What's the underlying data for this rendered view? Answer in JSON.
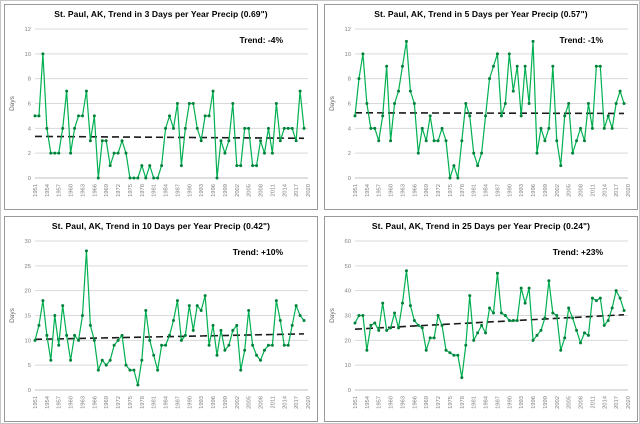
{
  "colors": {
    "line": "#00b050",
    "marker": "#00813b",
    "trend_line": "#1a1a1a",
    "grid": "#d9d9d9",
    "axis": "#bfbfbf",
    "tick_text": "#808080",
    "title_text": "#000000",
    "panel_border": "#999999",
    "frame_border": "#c6c6c6",
    "background": "#ffffff"
  },
  "chart_data": [
    {
      "type": "line",
      "title": "St. Paul, AK, Trend in 3 Days per Year Precip (0.69\")",
      "trend_label": "Trend: -4%",
      "ylabel": "Days",
      "x_start": 1951,
      "x_axis_end": 2020,
      "xticks": [
        1951,
        1954,
        1957,
        1960,
        1963,
        1966,
        1969,
        1972,
        1975,
        1978,
        1981,
        1984,
        1987,
        1990,
        1993,
        1996,
        1999,
        2002,
        2005,
        2008,
        2011,
        2014,
        2017,
        2020
      ],
      "ylim": [
        0,
        12
      ],
      "ytick_step": 2,
      "grid": true,
      "legend": "none",
      "trend_line": [
        3.35,
        3.2
      ],
      "values": [
        5,
        5,
        10,
        4,
        2,
        2,
        2,
        4,
        7,
        2,
        4,
        5,
        5,
        7,
        3,
        5,
        0,
        3,
        3,
        1,
        2,
        2,
        3,
        2,
        0,
        0,
        0,
        1,
        0,
        1,
        0,
        0,
        1,
        4,
        5,
        4,
        6,
        1,
        4,
        6,
        6,
        4,
        3,
        5,
        5,
        7,
        0,
        3,
        2,
        3,
        6,
        1,
        1,
        4,
        4,
        1,
        1,
        3,
        2,
        4,
        2,
        6,
        3,
        4,
        4,
        4,
        3,
        7,
        4
      ]
    },
    {
      "type": "line",
      "title": "St. Paul, AK, Trend in 5 Days per Year Precip (0.57\")",
      "trend_label": "Trend: -1%",
      "ylabel": "Days",
      "x_start": 1951,
      "x_axis_end": 2020,
      "xticks": [
        1951,
        1954,
        1957,
        1960,
        1963,
        1966,
        1969,
        1972,
        1975,
        1978,
        1981,
        1984,
        1987,
        1990,
        1993,
        1996,
        1999,
        2002,
        2005,
        2008,
        2011,
        2014,
        2017,
        2020
      ],
      "ylim": [
        0,
        12
      ],
      "ytick_step": 2,
      "grid": true,
      "legend": "none",
      "trend_line": [
        5.25,
        5.2
      ],
      "values": [
        5,
        8,
        10,
        6,
        4,
        4,
        3,
        5,
        9,
        3,
        6,
        7,
        9,
        11,
        7,
        6,
        2,
        4,
        3,
        5,
        3,
        3,
        4,
        3,
        0,
        1,
        0,
        3,
        6,
        5,
        2,
        1,
        2,
        5,
        8,
        9,
        10,
        5,
        6,
        10,
        7,
        9,
        5,
        9,
        6,
        11,
        2,
        4,
        3,
        4,
        9,
        3,
        1,
        5,
        6,
        2,
        3,
        4,
        3,
        6,
        4,
        9,
        9,
        4,
        5,
        4,
        6,
        7,
        6
      ]
    },
    {
      "type": "line",
      "title": "St. Paul, AK, Trend in 10 Days per Year Precip (0.42\")",
      "trend_label": "Trend: +10%",
      "ylabel": "Days",
      "x_start": 1951,
      "x_axis_end": 2020,
      "xticks": [
        1951,
        1954,
        1957,
        1960,
        1963,
        1966,
        1969,
        1972,
        1975,
        1978,
        1981,
        1984,
        1987,
        1990,
        1993,
        1996,
        1999,
        2002,
        2005,
        2008,
        2011,
        2014,
        2017,
        2020
      ],
      "ylim": [
        0,
        30
      ],
      "ytick_step": 5,
      "grid": true,
      "legend": "none",
      "trend_line": [
        10.2,
        11.3
      ],
      "values": [
        10,
        13,
        18,
        11,
        6,
        15,
        9,
        17,
        11,
        6,
        11,
        10,
        15,
        28,
        13,
        10,
        4,
        6,
        5,
        6,
        9,
        10,
        11,
        5,
        4,
        4,
        1,
        6,
        16,
        10,
        7,
        4,
        9,
        9,
        11,
        14,
        18,
        10,
        11,
        17,
        12,
        17,
        16,
        19,
        9,
        13,
        7,
        12,
        8,
        9,
        12,
        13,
        4,
        8,
        16,
        9,
        7,
        6,
        8,
        9,
        9,
        18,
        14,
        9,
        9,
        13,
        17,
        15,
        14
      ]
    },
    {
      "type": "line",
      "title": "St. Paul, AK, Trend in 25 Days per Year Precip (0.24\")",
      "trend_label": "Trend: +23%",
      "ylabel": "Days",
      "x_start": 1951,
      "x_axis_end": 2020,
      "xticks": [
        1951,
        1954,
        1957,
        1960,
        1963,
        1966,
        1969,
        1972,
        1975,
        1978,
        1981,
        1984,
        1987,
        1990,
        1993,
        1996,
        1999,
        2002,
        2005,
        2008,
        2011,
        2014,
        2017,
        2020
      ],
      "ylim": [
        0,
        60
      ],
      "ytick_step": 10,
      "grid": true,
      "legend": "none",
      "trend_line": [
        24.5,
        30.3
      ],
      "values": [
        27,
        30,
        30,
        16,
        26,
        27,
        24,
        35,
        24,
        25,
        31,
        25,
        35,
        48,
        34,
        28,
        26,
        25,
        16,
        21,
        21,
        30,
        26,
        16,
        15,
        14,
        14,
        5,
        18,
        38,
        20,
        23,
        26,
        23,
        33,
        31,
        47,
        31,
        30,
        28,
        28,
        28,
        41,
        35,
        41,
        20,
        22,
        24,
        29,
        44,
        31,
        30,
        16,
        21,
        33,
        29,
        24,
        19,
        23,
        22,
        37,
        36,
        37,
        26,
        28,
        33,
        40,
        37,
        32
      ]
    }
  ]
}
